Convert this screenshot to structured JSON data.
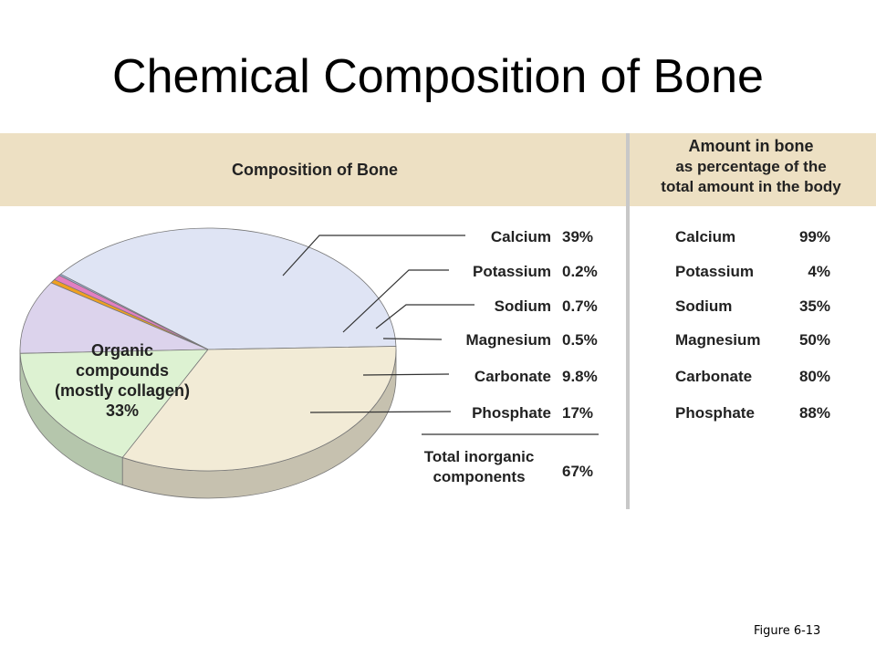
{
  "slide": {
    "title": "Chemical Composition of Bone",
    "figure_label": "Figure 6-13"
  },
  "colors": {
    "header_band": "#ede0c3",
    "divider": "#c8c8c8",
    "calcium": "#dfe4f4",
    "potassium": "#9db3e0",
    "sodium": "#e27fc2",
    "magnesium": "#f0a020",
    "carbonate": "#dcd3ec",
    "phosphate": "#ddf2d2",
    "organic": "#f2ebd6"
  },
  "chart_data": [
    {
      "type": "pie",
      "title": "Composition of Bone",
      "slices": [
        {
          "name": "Calcium",
          "label": "39%",
          "value": 39.0,
          "color": "#dfe4f4"
        },
        {
          "name": "Potassium",
          "label": "0.2%",
          "value": 0.2,
          "color": "#9db3e0"
        },
        {
          "name": "Sodium",
          "label": "0.7%",
          "value": 0.7,
          "color": "#e27fc2"
        },
        {
          "name": "Magnesium",
          "label": "0.5%",
          "value": 0.5,
          "color": "#f0a020"
        },
        {
          "name": "Carbonate",
          "label": "9.8%",
          "value": 9.8,
          "color": "#dcd3ec"
        },
        {
          "name": "Phosphate",
          "label": "17%",
          "value": 17.0,
          "color": "#ddf2d2"
        },
        {
          "name": "Organic compounds (mostly collagen)",
          "label": "33%",
          "value": 33.0,
          "color": "#f2ebd6"
        }
      ],
      "organic_label_lines": [
        "Organic",
        "compounds",
        "(mostly collagen)",
        "33%"
      ],
      "total": {
        "label_lines": [
          "Total inorganic",
          "components"
        ],
        "value": "67%"
      }
    },
    {
      "type": "table",
      "header_lines": [
        "Amount in bone",
        "as percentage of the",
        "total amount in the body"
      ],
      "rows": [
        {
          "name": "Calcium",
          "value": "99%"
        },
        {
          "name": "Potassium",
          "value": "4%"
        },
        {
          "name": "Sodium",
          "value": "35%"
        },
        {
          "name": "Magnesium",
          "value": "50%"
        },
        {
          "name": "Carbonate",
          "value": "80%"
        },
        {
          "name": "Phosphate",
          "value": "88%"
        }
      ]
    }
  ]
}
